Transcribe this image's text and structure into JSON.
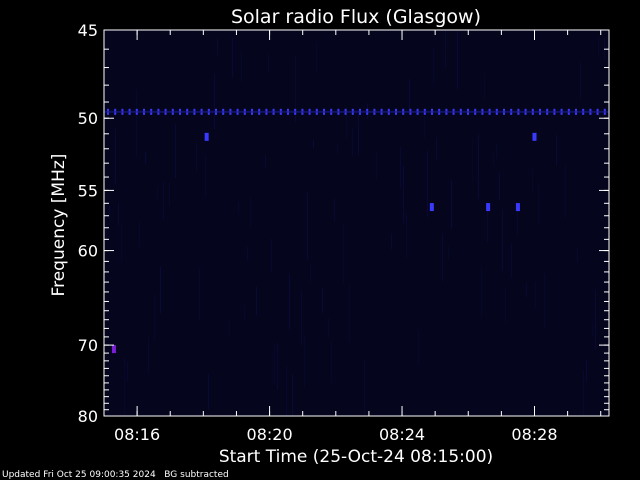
{
  "chart_data": {
    "type": "heatmap",
    "title": "Solar radio Flux (Glasgow)",
    "xlabel": "Start Time (25-Oct-24 08:15:00)",
    "ylabel": "Frequency [MHz]",
    "x_range_minutes": [
      0,
      15.25
    ],
    "x_ticks": [
      {
        "label": "08:16",
        "minute": 1
      },
      {
        "label": "08:20",
        "minute": 5
      },
      {
        "label": "08:24",
        "minute": 9
      },
      {
        "label": "08:28",
        "minute": 13
      }
    ],
    "y_range_mhz": [
      45,
      80
    ],
    "y_scale": "reciprocal",
    "y_ticks": [
      45,
      50,
      55,
      60,
      70,
      80
    ],
    "colors": {
      "background": "#000000",
      "plot_bg": "#05051e",
      "noise": "#0b0b3a",
      "stripe": "#1c1c8c",
      "blob": "#3a3aff",
      "hot": "#7a1fd6",
      "axes": "#ffffff"
    },
    "features": [
      {
        "kind": "persistent-band",
        "frequency_mhz": 49.6
      },
      {
        "kind": "spot",
        "minute": 0.3,
        "frequency_mhz": 70.5
      },
      {
        "kind": "spot",
        "minute": 3.1,
        "frequency_mhz": 51.2
      },
      {
        "kind": "spot",
        "minute": 13.0,
        "frequency_mhz": 51.2
      },
      {
        "kind": "spot",
        "minute": 9.9,
        "frequency_mhz": 56.3
      },
      {
        "kind": "spot",
        "minute": 11.6,
        "frequency_mhz": 56.3
      },
      {
        "kind": "spot",
        "minute": 12.5,
        "frequency_mhz": 56.3
      }
    ]
  },
  "footer": {
    "updated": "Updated Fri Oct 25 09:00:35 2024",
    "note": "BG subtracted"
  }
}
